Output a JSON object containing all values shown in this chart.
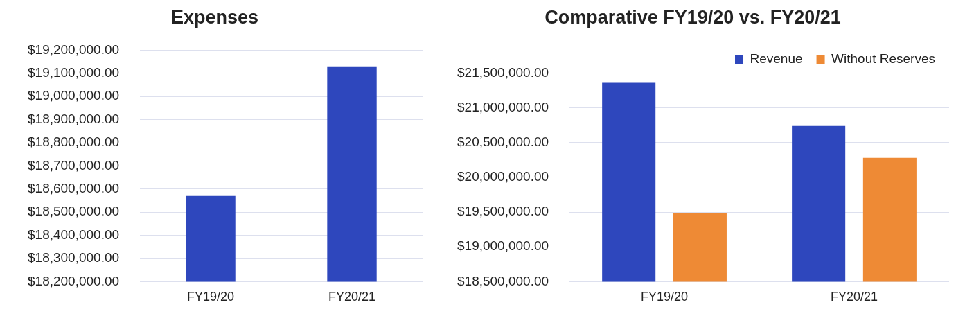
{
  "chart_data": [
    {
      "type": "bar",
      "title": "Expenses",
      "categories": [
        "FY19/20",
        "FY20/21"
      ],
      "values": [
        18570000,
        19130000
      ],
      "color": "#2e47bd",
      "ylim": [
        18200000,
        19200000
      ],
      "yticks": [
        {
          "value": 18200000,
          "label": "$18,200,000.00"
        },
        {
          "value": 18300000,
          "label": "$18,300,000.00"
        },
        {
          "value": 18400000,
          "label": "$18,400,000.00"
        },
        {
          "value": 18500000,
          "label": "$18,500,000.00"
        },
        {
          "value": 18600000,
          "label": "$18,600,000.00"
        },
        {
          "value": 18700000,
          "label": "$18,700,000.00"
        },
        {
          "value": 18800000,
          "label": "$18,800,000.00"
        },
        {
          "value": 18900000,
          "label": "$18,900,000.00"
        },
        {
          "value": 19000000,
          "label": "$19,000,000.00"
        },
        {
          "value": 19100000,
          "label": "$19,100,000.00"
        },
        {
          "value": 19200000,
          "label": "$19,200,000.00"
        }
      ],
      "grid": "y",
      "legend": false
    },
    {
      "type": "bar",
      "title": "Comparative FY19/20 vs. FY20/21",
      "categories": [
        "FY19/20",
        "FY20/21"
      ],
      "series": [
        {
          "name": "Revenue",
          "color": "#2e47bd",
          "values": [
            21360000,
            20740000
          ]
        },
        {
          "name": "Without Reserves",
          "color": "#ee8a35",
          "values": [
            19490000,
            20280000
          ]
        }
      ],
      "ylim": [
        18500000,
        21500000
      ],
      "yticks": [
        {
          "value": 18500000,
          "label": "$18,500,000.00"
        },
        {
          "value": 19000000,
          "label": "$19,000,000.00"
        },
        {
          "value": 19500000,
          "label": "$19,500,000.00"
        },
        {
          "value": 20000000,
          "label": "$20,000,000.00"
        },
        {
          "value": 20500000,
          "label": "$20,500,000.00"
        },
        {
          "value": 21000000,
          "label": "$21,000,000.00"
        },
        {
          "value": 21500000,
          "label": "$21,500,000.00"
        }
      ],
      "grid": "y",
      "legend": "top right"
    }
  ]
}
